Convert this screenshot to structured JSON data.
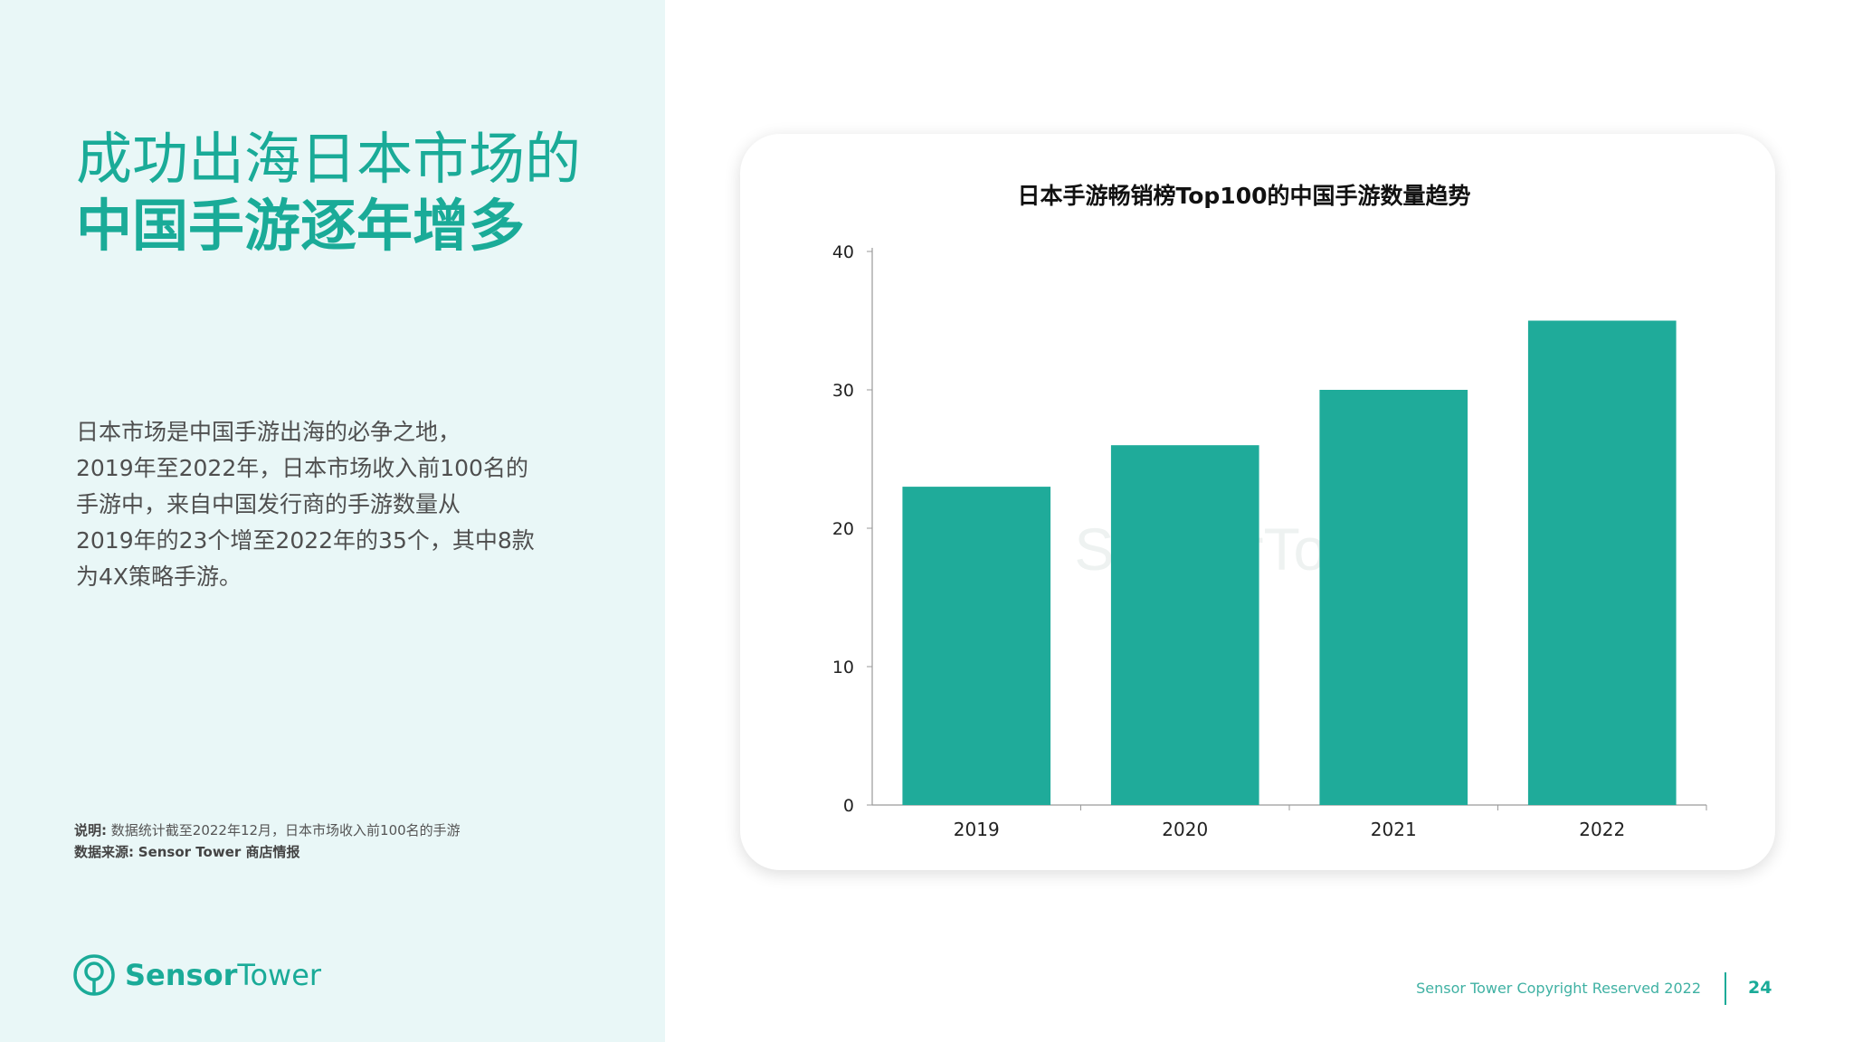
{
  "title": {
    "line1": "成功出海日本市场的",
    "line2": "中国手游逐年增多"
  },
  "description": [
    "日本市场是中国手游出海的必争之地，",
    "2019年至2022年，日本市场收入前100名的",
    "手游中，来自中国发行商的手游数量从",
    "2019年的23个增至2022年的35个，其中8款",
    "为4X策略手游。"
  ],
  "note": {
    "label": "说明:",
    "text": "数据统计截至2022年12月，日本市场收入前100名的手游",
    "source_label": "数据来源:",
    "source_text": "Sensor Tower 商店情报"
  },
  "logo": {
    "bold": "Sensor",
    "regular": "Tower",
    "icon": "sensor-tower-logo-icon"
  },
  "footer": {
    "copyright": "Sensor Tower Copyright Reserved 2022",
    "page_number": "24"
  },
  "colors": {
    "accent": "#1aab98",
    "bar": "#1fab9a",
    "left_panel_bg": "#e9f7f7"
  },
  "chart_data": {
    "type": "bar",
    "title": "日本手游畅销榜Top100的中国手游数量趋势",
    "categories": [
      "2019",
      "2020",
      "2021",
      "2022"
    ],
    "values": [
      23,
      26,
      30,
      35
    ],
    "ylim": [
      0,
      40
    ],
    "yticks": [
      0,
      10,
      20,
      30,
      40
    ],
    "xlabel": "",
    "ylabel": "",
    "grid": false,
    "watermark": "SensorTower"
  }
}
